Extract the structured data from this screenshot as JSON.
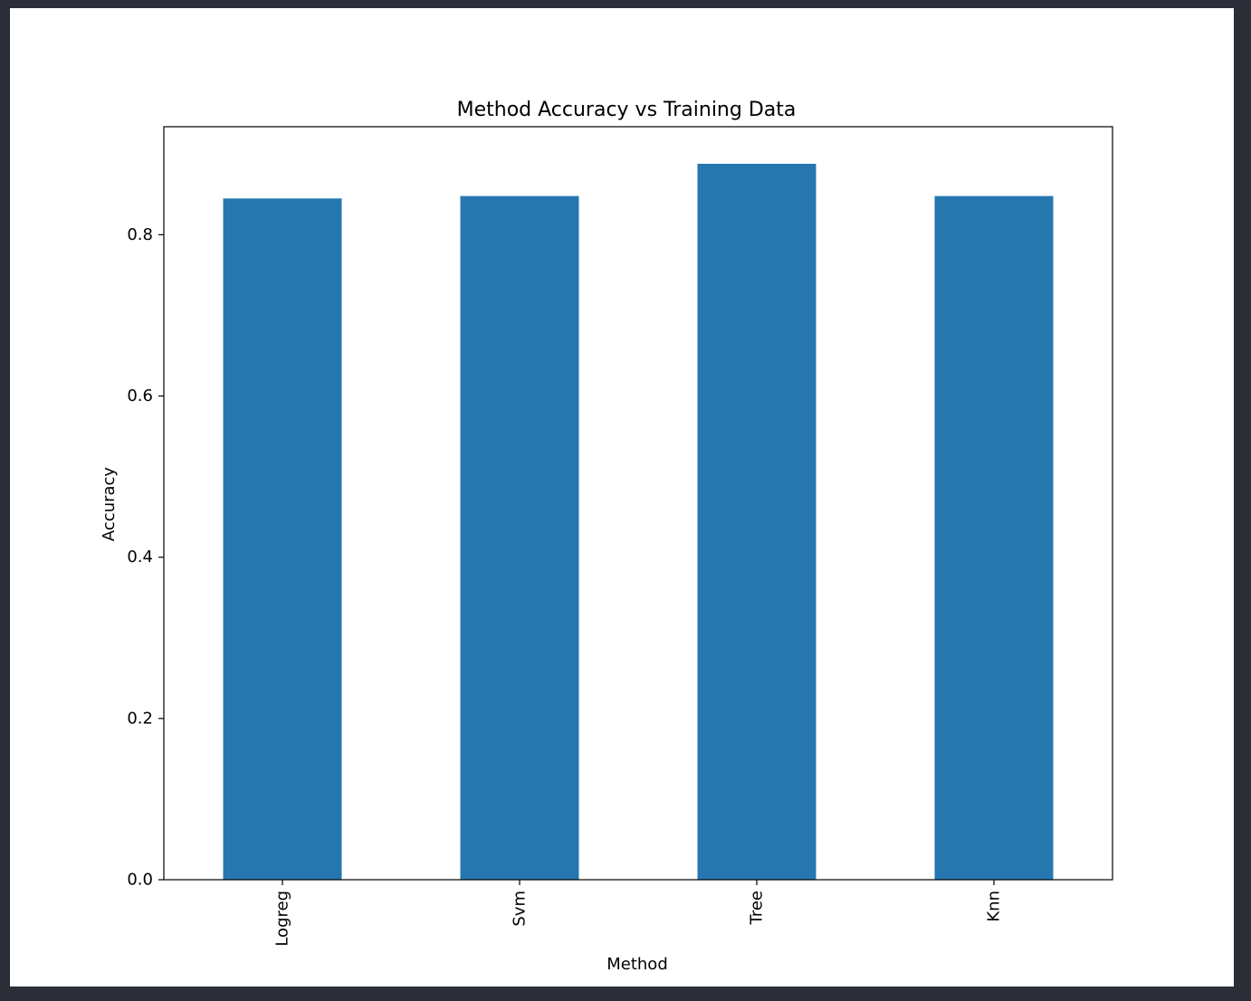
{
  "chart_data": {
    "type": "bar",
    "title": "Method Accuracy vs Training Data",
    "xlabel": "Method",
    "ylabel": "Accuracy",
    "categories": [
      "Logreg",
      "Svm",
      "Tree",
      "Knn"
    ],
    "values": [
      0.845,
      0.848,
      0.888,
      0.848
    ],
    "ylim": [
      0,
      0.934
    ],
    "yticks": [
      0.0,
      0.2,
      0.4,
      0.6,
      0.8
    ],
    "ytick_labels": [
      "0.0",
      "0.2",
      "0.4",
      "0.6",
      "0.8"
    ],
    "grid": false,
    "legend": "none",
    "bar_color": "#2677b0"
  }
}
